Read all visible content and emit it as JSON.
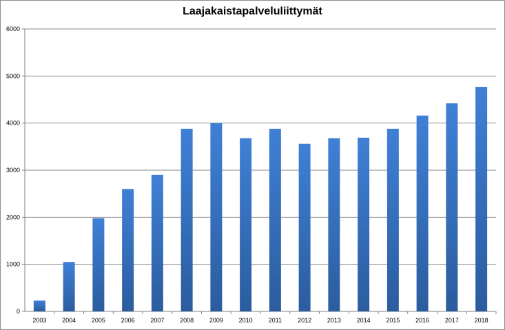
{
  "chart_data": {
    "type": "bar",
    "title": "Laajakaistapalveluliittymät",
    "xlabel": "",
    "ylabel": "",
    "categories": [
      "2003",
      "2004",
      "2005",
      "2006",
      "2007",
      "2008",
      "2009",
      "2010",
      "2011",
      "2012",
      "2013",
      "2014",
      "2015",
      "2016",
      "2017",
      "2018"
    ],
    "values": [
      230,
      1050,
      1980,
      2600,
      2900,
      3880,
      4000,
      3680,
      3880,
      3560,
      3680,
      3690,
      3880,
      4160,
      4420,
      4770
    ],
    "ylim": [
      0,
      6000
    ],
    "yticks": [
      "0",
      "1000",
      "2000",
      "3000",
      "4000",
      "5000",
      "6000"
    ],
    "grid": true,
    "legend": "none",
    "colors": {
      "bar_top": "#3f80d6",
      "bar_bottom": "#2b5c9e",
      "grid": "#8a8a8a",
      "axis": "#808080"
    }
  }
}
